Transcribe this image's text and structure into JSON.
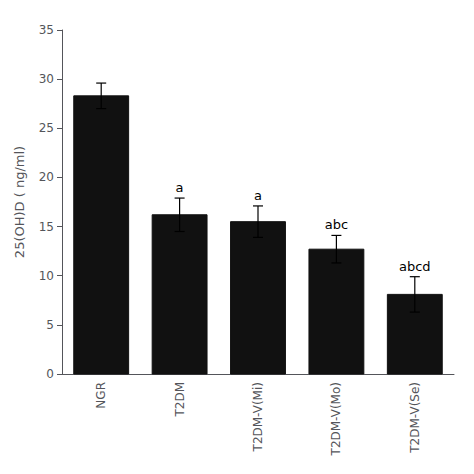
{
  "chart_data": {
    "type": "bar",
    "categories": [
      "NGR",
      "T2DM",
      "T2DM-V(Mi)",
      "T2DM-V(Mo)",
      "T2DM-V(Se)"
    ],
    "values": [
      28.3,
      16.2,
      15.5,
      12.7,
      8.1
    ],
    "errors": [
      1.3,
      1.7,
      1.6,
      1.4,
      1.8
    ],
    "annotations": [
      null,
      "a",
      "a",
      "abc",
      "abcd"
    ],
    "color": "#111111",
    "ylabel": "25(OH)D ( ng/ml)",
    "ylim": [
      0,
      35
    ],
    "yticks": [
      0,
      5,
      10,
      15,
      20,
      25,
      30,
      35
    ],
    "grid": false
  }
}
